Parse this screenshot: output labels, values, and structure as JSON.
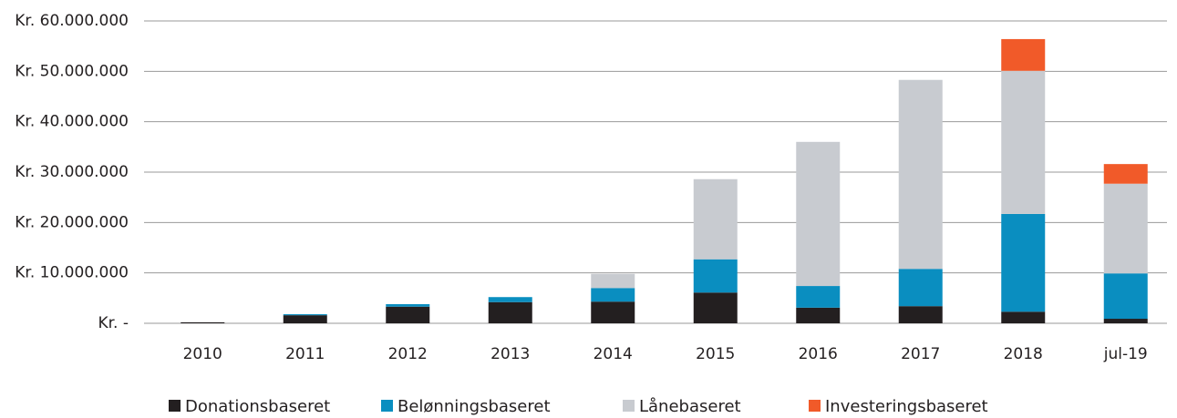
{
  "chart_data": {
    "type": "stacked_bar",
    "categories": [
      "2010",
      "2011",
      "2012",
      "2013",
      "2014",
      "2015",
      "2016",
      "2017",
      "2018",
      "jul-19"
    ],
    "series": [
      {
        "name": "Donationsbaseret",
        "color": "#231f20",
        "values": [
          200000,
          1600000,
          3300000,
          4200000,
          4300000,
          6100000,
          3100000,
          3400000,
          2300000,
          900000
        ]
      },
      {
        "name": "Belønningsbaseret",
        "color": "#0a8ec0",
        "values": [
          0,
          200000,
          500000,
          1000000,
          2700000,
          6600000,
          4300000,
          7400000,
          19400000,
          9000000
        ]
      },
      {
        "name": "Lånebaseret",
        "color": "#c8cbd0",
        "values": [
          0,
          0,
          0,
          0,
          2800000,
          15900000,
          28600000,
          37500000,
          28400000,
          17800000
        ]
      },
      {
        "name": "Investeringsbaseret",
        "color": "#f15a29",
        "values": [
          0,
          0,
          0,
          0,
          0,
          0,
          0,
          0,
          6300000,
          3900000
        ]
      }
    ],
    "ylim": [
      0,
      60000000
    ],
    "yticks": [
      {
        "value": 0,
        "label": "Kr. -"
      },
      {
        "value": 10000000,
        "label": "Kr. 10.000.000"
      },
      {
        "value": 20000000,
        "label": "Kr. 20.000.000"
      },
      {
        "value": 30000000,
        "label": "Kr. 30.000.000"
      },
      {
        "value": 40000000,
        "label": "Kr. 40.000.000"
      },
      {
        "value": 50000000,
        "label": "Kr. 50.000.000"
      },
      {
        "value": 60000000,
        "label": "Kr. 60.000.000"
      }
    ],
    "grid": true,
    "legend": "bottom"
  }
}
